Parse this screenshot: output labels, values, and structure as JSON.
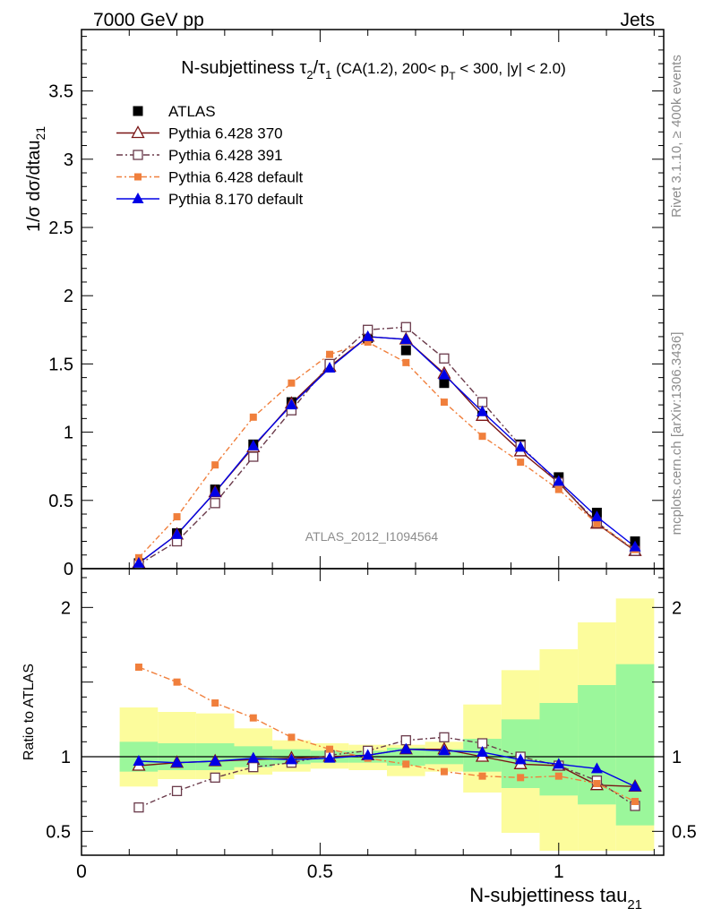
{
  "header": {
    "left": "7000 GeV pp",
    "right": "Jets"
  },
  "side_notes": {
    "rivet": "Rivet 3.1.10, ≥ 400k events",
    "mcplots": "mcplots.cern.ch [arXiv:1306.3436]"
  },
  "chart_data": [
    {
      "type": "line",
      "title": "N-subjettiness τ₂/τ₁ (CA(1.2), 200< p_T < 300, |y| < 2.0)",
      "title_parts": {
        "main": "N-subjettiness ",
        "tau2": "τ",
        "sub2": "2",
        "slash": "/",
        "tau1": "τ",
        "sub1": "1",
        "rest1": " (CA(1.2), 200< p",
        "subT": "T",
        "rest2": " < 300, |y| < 2.0)"
      },
      "ylabel": {
        "main": "1/σ dσ/dtau",
        "sub": "21"
      },
      "analysis_label": "ATLAS_2012_I1094564",
      "xlim": [
        0,
        1.22
      ],
      "ylim": [
        0,
        3.95
      ],
      "y_ticks": [
        0,
        0.5,
        1,
        1.5,
        2,
        2.5,
        3,
        3.5
      ],
      "y_tick_labels": [
        "0",
        "0.5",
        "1",
        "1.5",
        "2",
        "2.5",
        "3",
        "3.5"
      ],
      "x": [
        0.12,
        0.2,
        0.28,
        0.36,
        0.44,
        0.52,
        0.6,
        0.68,
        0.76,
        0.84,
        0.92,
        1.0,
        1.08,
        1.16
      ],
      "series": [
        {
          "name": "ATLAS",
          "color": "#000000",
          "marker": "filled-square",
          "values": [
            0.04,
            0.26,
            0.58,
            0.91,
            1.22,
            1.48,
            1.69,
            1.6,
            1.36,
            1.12,
            0.91,
            0.67,
            0.41,
            0.2
          ]
        },
        {
          "name": "Pythia 6.428 370",
          "color": "#7a1515",
          "marker": "open-triangle",
          "values": [
            0.04,
            0.25,
            0.56,
            0.89,
            1.21,
            1.48,
            1.7,
            1.68,
            1.43,
            1.12,
            0.86,
            0.63,
            0.33,
            0.13
          ]
        },
        {
          "name": "Pythia 6.428 391",
          "color": "#6a3a4a",
          "marker": "open-square",
          "values": [
            0.03,
            0.2,
            0.48,
            0.82,
            1.16,
            1.5,
            1.75,
            1.77,
            1.54,
            1.22,
            0.9,
            0.63,
            0.34,
            0.13
          ]
        },
        {
          "name": "Pythia 6.428 default",
          "color": "#f07f3c",
          "marker": "filled-square-small",
          "values": [
            0.08,
            0.38,
            0.76,
            1.11,
            1.36,
            1.57,
            1.66,
            1.51,
            1.22,
            0.97,
            0.78,
            0.58,
            0.33,
            0.14
          ]
        },
        {
          "name": "Pythia 8.170 default",
          "color": "#0000e6",
          "marker": "filled-triangle",
          "values": [
            0.04,
            0.25,
            0.56,
            0.9,
            1.2,
            1.47,
            1.7,
            1.68,
            1.42,
            1.15,
            0.89,
            0.64,
            0.38,
            0.16
          ]
        }
      ]
    },
    {
      "type": "line",
      "ylabel": "Ratio to ATLAS",
      "xlabel": {
        "main": "N-subjettiness tau",
        "sub": "21"
      },
      "xlim": [
        0,
        1.22
      ],
      "ylim": [
        0.34,
        2.26
      ],
      "x_ticks": [
        0,
        0.5,
        1
      ],
      "x_tick_labels": [
        "0",
        "0.5",
        "1"
      ],
      "y_ticks": [
        0.5,
        1,
        2
      ],
      "y_tick_labels": [
        "0.5",
        "1",
        "2"
      ],
      "bin_edges": [
        0.08,
        0.16,
        0.24,
        0.32,
        0.4,
        0.48,
        0.56,
        0.64,
        0.72,
        0.8,
        0.88,
        0.96,
        1.04,
        1.12,
        1.2
      ],
      "band_stat": [
        [
          0.9,
          1.1
        ],
        [
          0.91,
          1.09
        ],
        [
          0.91,
          1.09
        ],
        [
          0.93,
          1.07
        ],
        [
          0.95,
          1.05
        ],
        [
          0.96,
          1.04
        ],
        [
          0.96,
          1.04
        ],
        [
          0.94,
          1.06
        ],
        [
          0.95,
          1.05
        ],
        [
          0.9,
          1.12
        ],
        [
          0.79,
          1.25
        ],
        [
          0.74,
          1.36
        ],
        [
          0.68,
          1.48
        ],
        [
          0.54,
          1.62
        ]
      ],
      "band_total": [
        [
          0.8,
          1.33
        ],
        [
          0.85,
          1.3
        ],
        [
          0.85,
          1.29
        ],
        [
          0.88,
          1.19
        ],
        [
          0.9,
          1.11
        ],
        [
          0.92,
          1.09
        ],
        [
          0.91,
          1.08
        ],
        [
          0.87,
          1.08
        ],
        [
          0.9,
          1.1
        ],
        [
          0.76,
          1.35
        ],
        [
          0.49,
          1.58
        ],
        [
          0.37,
          1.72
        ],
        [
          0.37,
          1.9
        ],
        [
          0.37,
          2.06
        ]
      ],
      "x": [
        0.12,
        0.2,
        0.28,
        0.36,
        0.44,
        0.52,
        0.6,
        0.68,
        0.76,
        0.84,
        0.92,
        1.0,
        1.08,
        1.16
      ],
      "series": [
        {
          "name": "Pythia 6.428 370",
          "color": "#7a1515",
          "marker": "open-triangle",
          "values": [
            0.94,
            0.96,
            0.97,
            0.98,
            0.99,
            1.0,
            1.01,
            1.05,
            1.05,
            1.0,
            0.95,
            0.94,
            0.81,
            0.8
          ]
        },
        {
          "name": "Pythia 6.428 391",
          "color": "#6a3a4a",
          "marker": "open-square",
          "values": [
            0.66,
            0.77,
            0.86,
            0.93,
            0.96,
            1.01,
            1.04,
            1.11,
            1.13,
            1.09,
            1.0,
            0.94,
            0.84,
            0.67
          ]
        },
        {
          "name": "Pythia 6.428 default",
          "color": "#f07f3c",
          "marker": "filled-square-small",
          "values": [
            1.6,
            1.5,
            1.36,
            1.26,
            1.13,
            1.05,
            0.99,
            0.95,
            0.9,
            0.87,
            0.86,
            0.87,
            0.82,
            0.7
          ]
        },
        {
          "name": "Pythia 8.170 default",
          "color": "#0000e6",
          "marker": "filled-triangle",
          "values": [
            0.97,
            0.96,
            0.97,
            0.99,
            0.98,
            0.99,
            1.01,
            1.05,
            1.04,
            1.03,
            0.98,
            0.95,
            0.92,
            0.8
          ]
        }
      ]
    }
  ],
  "colors": {
    "band_stat": "#9bf79b",
    "band_total": "#fcfc9c"
  }
}
